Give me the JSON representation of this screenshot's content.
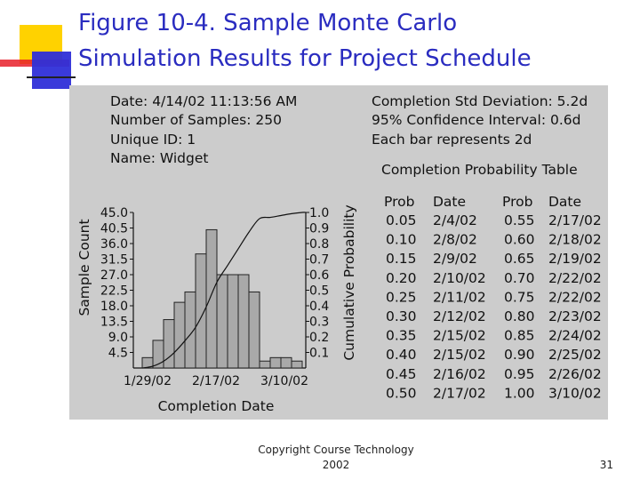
{
  "slide": {
    "title_line1": "Figure 10-4. Sample Monte Carlo",
    "title_line2": "Simulation Results for Project Schedule",
    "footer_line1": "Copyright Course Technology",
    "footer_line2": "2002",
    "page_number": "31"
  },
  "info": {
    "date": "Date: 4/14/02 11:13:56 AM",
    "samples": "Number of Samples: 250",
    "unique_id": "Unique ID: 1",
    "name": "Name: Widget",
    "std_dev": "Completion Std Deviation: 5.2d",
    "confidence": "95% Confidence Interval: 0.6d",
    "bar_note": "Each bar represents 2d"
  },
  "table": {
    "title": "Completion Probability Table",
    "headers": [
      "Prob",
      "Date",
      "Prob",
      "Date"
    ],
    "rows": [
      [
        "0.05",
        "2/4/02",
        "0.55",
        "2/17/02"
      ],
      [
        "0.10",
        "2/8/02",
        "0.60",
        "2/18/02"
      ],
      [
        "0.15",
        "2/9/02",
        "0.65",
        "2/19/02"
      ],
      [
        "0.20",
        "2/10/02",
        "0.70",
        "2/22/02"
      ],
      [
        "0.25",
        "2/11/02",
        "0.75",
        "2/22/02"
      ],
      [
        "0.30",
        "2/12/02",
        "0.80",
        "2/23/02"
      ],
      [
        "0.35",
        "2/15/02",
        "0.85",
        "2/24/02"
      ],
      [
        "0.40",
        "2/15/02",
        "0.90",
        "2/25/02"
      ],
      [
        "0.45",
        "2/16/02",
        "0.95",
        "2/26/02"
      ],
      [
        "0.50",
        "2/17/02",
        "1.00",
        "3/10/02"
      ]
    ]
  },
  "chart_data": {
    "type": "bar",
    "title": "",
    "xlabel": "Completion Date",
    "ylabel": "Sample Count",
    "y2label": "Cumulative Probability",
    "ylim": [
      0,
      45
    ],
    "y2lim": [
      0,
      1
    ],
    "yticks": [
      "45.0",
      "40.5",
      "36.0",
      "31.5",
      "27.0",
      "22.5",
      "18.0",
      "13.5",
      "9.0",
      "4.5"
    ],
    "y2ticks": [
      "1.0",
      "0.9",
      "0.8",
      "0.7",
      "0.6",
      "0.5",
      "0.4",
      "0.3",
      "0.2",
      "0.1"
    ],
    "xticks": [
      "1/29/02",
      "2/17/02",
      "3/10/02"
    ],
    "bar_width_days": 2,
    "values": [
      3,
      8,
      14,
      19,
      22,
      33,
      40,
      27,
      27,
      27,
      22,
      2,
      3,
      3,
      2
    ],
    "cumulative_curve": true,
    "grid": false
  }
}
